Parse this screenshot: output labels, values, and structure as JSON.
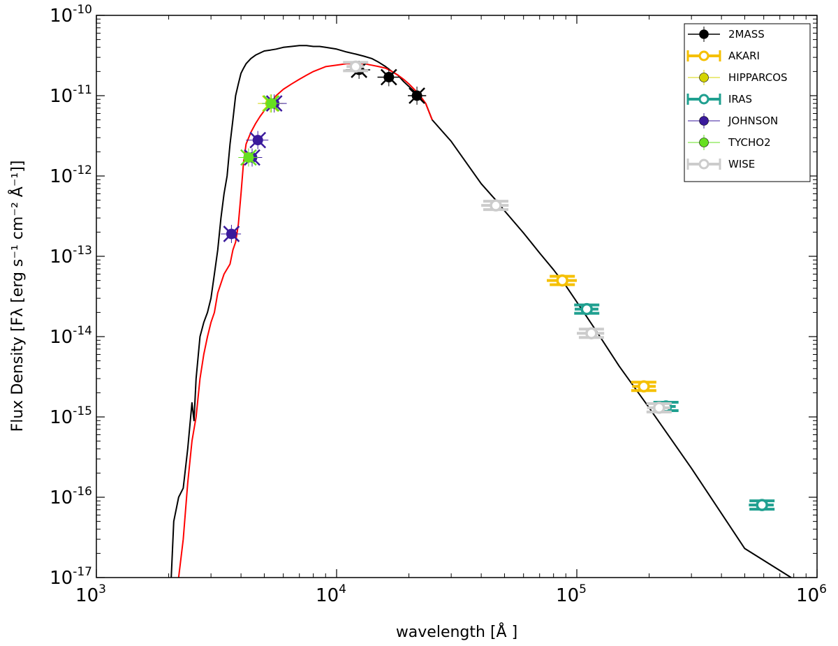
{
  "chart_data": {
    "type": "scatter",
    "xscale": "log",
    "yscale": "log",
    "xlim": [
      1000,
      1000000
    ],
    "ylim": [
      1e-17,
      1e-10
    ],
    "xlabel": "wavelength [Å ]",
    "ylabel": "Flux Density [Fλ [erg  s⁻¹ cm⁻² Å⁻¹]]",
    "x_ticks": [
      {
        "base": "10",
        "exp": "3",
        "value": 1000
      },
      {
        "base": "10",
        "exp": "4",
        "value": 10000
      },
      {
        "base": "10",
        "exp": "5",
        "value": 100000
      },
      {
        "base": "10",
        "exp": "6",
        "value": 1000000
      }
    ],
    "y_ticks": [
      {
        "base": "10",
        "exp": "-10",
        "value": 1e-10
      },
      {
        "base": "10",
        "exp": "-11",
        "value": 1e-11
      },
      {
        "base": "10",
        "exp": "-12",
        "value": 1e-12
      },
      {
        "base": "10",
        "exp": "-13",
        "value": 1e-13
      },
      {
        "base": "10",
        "exp": "-14",
        "value": 1e-14
      },
      {
        "base": "10",
        "exp": "-15",
        "value": 1e-15
      },
      {
        "base": "10",
        "exp": "-16",
        "value": 1e-16
      },
      {
        "base": "10",
        "exp": "-17",
        "value": 1e-17
      }
    ],
    "model_curves": [
      {
        "name": "model",
        "color": "#000000",
        "x": [
          2050,
          2100,
          2200,
          2300,
          2400,
          2500,
          2550,
          2600,
          2700,
          2800,
          2900,
          3000,
          3100,
          3200,
          3300,
          3400,
          3500,
          3600,
          3700,
          3800,
          3900,
          4000,
          4100,
          4200,
          4400,
          4600,
          4800,
          5000,
          5300,
          5600,
          6000,
          6500,
          7000,
          7500,
          8000,
          8500,
          9000,
          10000,
          11000,
          12000,
          13000,
          14000,
          15000,
          16000,
          17000,
          18000,
          19000,
          20000,
          22000,
          23500,
          25000,
          30000,
          40000,
          46000,
          50000,
          60000,
          70000,
          80000,
          90000,
          100000,
          120000,
          150000,
          200000,
          300000,
          500000,
          780000
        ],
        "y": [
          1e-17,
          5e-17,
          1e-16,
          1.3e-16,
          4e-16,
          1.5e-15,
          9e-16,
          3e-15,
          1e-14,
          1.5e-14,
          2e-14,
          3e-14,
          6e-14,
          1.2e-13,
          3e-13,
          6e-13,
          1e-12,
          2.5e-12,
          5e-12,
          1e-11,
          1.4e-11,
          1.9e-11,
          2.2e-11,
          2.5e-11,
          2.9e-11,
          3.2e-11,
          3.4e-11,
          3.6e-11,
          3.7e-11,
          3.8e-11,
          4e-11,
          4.1e-11,
          4.2e-11,
          4.2e-11,
          4.1e-11,
          4.1e-11,
          4e-11,
          3.8e-11,
          3.5e-11,
          3.3e-11,
          3.1e-11,
          2.9e-11,
          2.6e-11,
          2.3e-11,
          2e-11,
          1.8e-11,
          1.5e-11,
          1.3e-11,
          1e-11,
          8e-12,
          5e-12,
          2.7e-12,
          8e-13,
          5e-13,
          3.7e-13,
          1.95e-13,
          1.1e-13,
          6.8e-14,
          4.3e-14,
          2.7e-14,
          1.2e-14,
          4.3e-15,
          1.3e-15,
          2.3e-16,
          2.3e-17,
          1e-17
        ]
      },
      {
        "name": "model",
        "color": "#ff0000",
        "x": [
          2200,
          2300,
          2400,
          2500,
          2600,
          2700,
          2800,
          2900,
          3000,
          3100,
          3200,
          3400,
          3600,
          3700,
          3800,
          3900,
          4000,
          4100,
          4200,
          4400,
          4600,
          4800,
          5000,
          5300,
          5600,
          6000,
          6500,
          7000,
          7500,
          8000,
          9000,
          10000,
          11000,
          12000,
          13000,
          14000,
          15000,
          16000,
          17000,
          18000,
          19000,
          20000,
          22000,
          23500,
          25000
        ],
        "y": [
          1e-17,
          3e-17,
          1.5e-16,
          5e-16,
          1e-15,
          3e-15,
          6e-15,
          1e-14,
          1.5e-14,
          2e-14,
          3.5e-14,
          6e-14,
          8e-14,
          1.2e-13,
          1.5e-13,
          2.5e-13,
          6e-13,
          1.5e-12,
          2.5e-12,
          3.5e-12,
          4.5e-12,
          5.5e-12,
          6.5e-12,
          8e-12,
          1e-11,
          1.2e-11,
          1.4e-11,
          1.6e-11,
          1.8e-11,
          2e-11,
          2.3e-11,
          2.4e-11,
          2.5e-11,
          2.5e-11,
          2.5e-11,
          2.4e-11,
          2.3e-11,
          2.2e-11,
          2e-11,
          1.8e-11,
          1.6e-11,
          1.4e-11,
          1.05e-11,
          8e-12,
          5e-12
        ]
      }
    ],
    "series": [
      {
        "name": "2MASS",
        "color": "#000000",
        "marker": "filled",
        "lw": 1.5,
        "points": [
          {
            "x": 12400,
            "y": 2.1e-11,
            "xerr": [
              10900,
              13800
            ]
          },
          {
            "x": 16500,
            "y": 1.7e-11,
            "xerr": [
              14800,
              18300
            ]
          },
          {
            "x": 21600,
            "y": 1e-11,
            "xerr": [
              19800,
              23600
            ]
          }
        ]
      },
      {
        "name": "AKARI",
        "color": "#f5c000",
        "marker": "open",
        "lw": 4,
        "points": [
          {
            "x": 87000,
            "y": 5e-14,
            "xerr": [
              75000,
              100000
            ]
          },
          {
            "x": 190000,
            "y": 2.4e-15,
            "xerr": [
              170000,
              213000
            ]
          }
        ]
      },
      {
        "name": "HIPPARCOS",
        "color": "#d4d400",
        "marker": "filled",
        "lw": 1,
        "points": [
          {
            "x": 5300,
            "y": 8e-12,
            "xerr": [
              4700,
              6000
            ]
          }
        ]
      },
      {
        "name": "IRAS",
        "color": "#20a090",
        "marker": "open",
        "lw": 4,
        "points": [
          {
            "x": 110000,
            "y": 2.2e-14,
            "xerr": [
              98000,
              123000
            ]
          },
          {
            "x": 235000,
            "y": 1.35e-15,
            "xerr": [
              212000,
              258000
            ]
          },
          {
            "x": 590000,
            "y": 8e-17,
            "xerr": [
              520000,
              660000
            ]
          }
        ]
      },
      {
        "name": "JOHNSON",
        "color": "#3a1a9c",
        "marker": "filled",
        "lw": 1,
        "points": [
          {
            "x": 3650,
            "y": 1.9e-13,
            "xerr": [
              3300,
              4000
            ]
          },
          {
            "x": 4450,
            "y": 1.7e-12,
            "xerr": [
              4000,
              4900
            ]
          },
          {
            "x": 4700,
            "y": 2.8e-12,
            "xerr": [
              4200,
              5200
            ]
          },
          {
            "x": 5500,
            "y": 8e-12,
            "xerr": [
              4900,
              6200
            ]
          }
        ]
      },
      {
        "name": "TYCHO2",
        "color": "#66e020",
        "marker": "filled",
        "lw": 1,
        "points": [
          {
            "x": 4300,
            "y": 1.7e-12,
            "xerr": [
              3900,
              4700
            ]
          },
          {
            "x": 5350,
            "y": 8e-12,
            "xerr": [
              4900,
              5800
            ]
          }
        ]
      },
      {
        "name": "WISE",
        "color": "#cccccc",
        "marker": "open",
        "lw": 4,
        "points": [
          {
            "x": 46000,
            "y": 4.3e-13,
            "xerr": [
              40000,
              52000
            ]
          },
          {
            "x": 115000,
            "y": 1.1e-14,
            "xerr": [
              100000,
              130000
            ]
          },
          {
            "x": 220000,
            "y": 1.3e-15,
            "xerr": [
              196000,
              245000
            ]
          },
          {
            "x": 12000,
            "y": 2.3e-11,
            "xerr": [
              11000,
              13000
            ]
          }
        ]
      }
    ],
    "legend": {
      "position": "top-right",
      "entries": [
        {
          "label": "2MASS",
          "color": "#000000",
          "marker": "filled",
          "lw": 1.5
        },
        {
          "label": "AKARI",
          "color": "#f5c000",
          "marker": "open",
          "lw": 4
        },
        {
          "label": "HIPPARCOS",
          "color": "#d4d400",
          "marker": "filled",
          "lw": 1
        },
        {
          "label": "IRAS",
          "color": "#20a090",
          "marker": "open",
          "lw": 4
        },
        {
          "label": "JOHNSON",
          "color": "#3a1a9c",
          "marker": "filled",
          "lw": 1
        },
        {
          "label": "TYCHO2",
          "color": "#66e020",
          "marker": "filled",
          "lw": 1
        },
        {
          "label": "WISE",
          "color": "#cccccc",
          "marker": "open",
          "lw": 4
        }
      ]
    }
  }
}
